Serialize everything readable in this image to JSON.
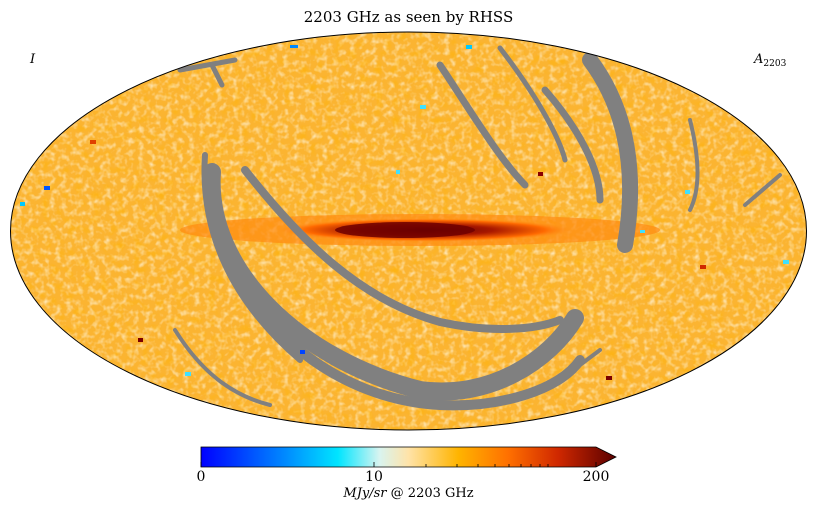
{
  "map": {
    "title": "2203 GHz as seen by RHSS",
    "stokes": "I",
    "band_main": "A",
    "band_sub": "2203",
    "projection": "Mollweide",
    "masked_color": "#808080",
    "background_emission_color": "#fbb431",
    "plane_peak_color": "#6e0000"
  },
  "colorbar": {
    "min_label": "0",
    "mid_label": "10",
    "max_label": "200",
    "unit_italic": "MJy/sr",
    "unit_rest": " @ 2203 GHz",
    "stops": [
      {
        "offset": 0.0,
        "color": "#0000ff"
      },
      {
        "offset": 0.2,
        "color": "#0088ff"
      },
      {
        "offset": 0.33,
        "color": "#00e5ff"
      },
      {
        "offset": 0.43,
        "color": "#d8f4f0"
      },
      {
        "offset": 0.5,
        "color": "#ffe3a8"
      },
      {
        "offset": 0.62,
        "color": "#ffb400"
      },
      {
        "offset": 0.74,
        "color": "#ff7000"
      },
      {
        "offset": 0.86,
        "color": "#d02800"
      },
      {
        "offset": 1.0,
        "color": "#5a0000"
      }
    ]
  }
}
